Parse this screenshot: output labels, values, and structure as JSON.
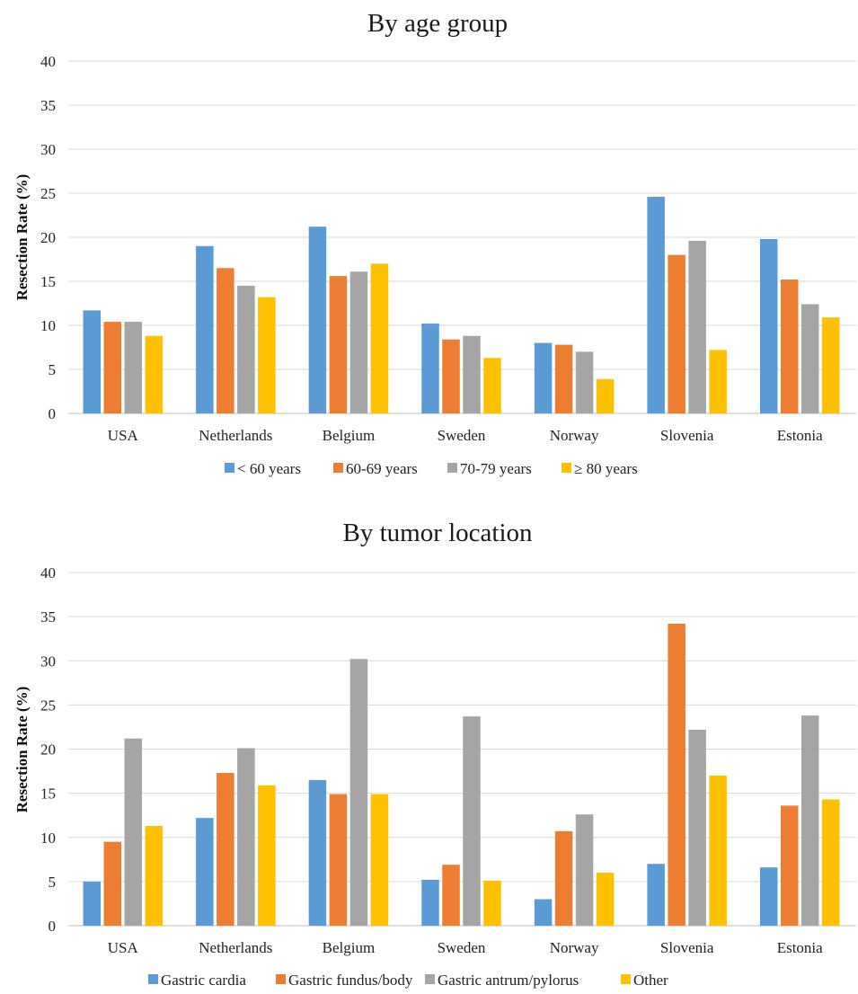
{
  "chart_data": [
    {
      "type": "bar",
      "title": "By age group",
      "xlabel": "",
      "ylabel": "Resection Rate (%)",
      "ylim": [
        0,
        40
      ],
      "yticks": [
        "0",
        "5",
        "10",
        "15",
        "20",
        "25",
        "30",
        "35",
        "40"
      ],
      "grid": "horizontal",
      "legend_position": "bottom",
      "categories": [
        "USA",
        "Netherlands",
        "Belgium",
        "Sweden",
        "Norway",
        "Slovenia",
        "Estonia"
      ],
      "series": [
        {
          "name": "< 60 years",
          "color": "#5b9bd5",
          "values": [
            11.7,
            19.0,
            21.2,
            10.2,
            8.0,
            24.6,
            19.8
          ]
        },
        {
          "name": "60-69 years",
          "color": "#ed7d31",
          "values": [
            10.4,
            16.5,
            15.6,
            8.4,
            7.8,
            18.0,
            15.2
          ]
        },
        {
          "name": "70-79 years",
          "color": "#a5a5a5",
          "values": [
            10.4,
            14.5,
            16.1,
            8.8,
            7.0,
            19.6,
            12.4
          ]
        },
        {
          "name": "≥ 80 years",
          "color": "#ffc000",
          "values": [
            8.8,
            13.2,
            17.0,
            6.3,
            3.9,
            7.2,
            10.9
          ]
        }
      ]
    },
    {
      "type": "bar",
      "title": "By tumor location",
      "xlabel": "",
      "ylabel": "Resection Rate (%)",
      "ylim": [
        0,
        40
      ],
      "yticks": [
        "0",
        "5",
        "10",
        "15",
        "20",
        "25",
        "30",
        "35",
        "40"
      ],
      "grid": "horizontal",
      "legend_position": "bottom",
      "categories": [
        "USA",
        "Netherlands",
        "Belgium",
        "Sweden",
        "Norway",
        "Slovenia",
        "Estonia"
      ],
      "series": [
        {
          "name": "Gastric cardia",
          "color": "#5b9bd5",
          "values": [
            5.0,
            12.2,
            16.5,
            5.2,
            3.0,
            7.0,
            6.6
          ]
        },
        {
          "name": "Gastric fundus/body",
          "color": "#ed7d31",
          "values": [
            9.5,
            17.3,
            14.9,
            6.9,
            10.7,
            34.2,
            13.6
          ]
        },
        {
          "name": "Gastric antrum/pylorus",
          "color": "#a5a5a5",
          "values": [
            21.2,
            20.1,
            30.2,
            23.7,
            12.6,
            22.2,
            23.8
          ]
        },
        {
          "name": "Other",
          "color": "#ffc000",
          "values": [
            11.3,
            15.9,
            14.9,
            5.1,
            6.0,
            17.0,
            14.3
          ]
        }
      ]
    }
  ]
}
